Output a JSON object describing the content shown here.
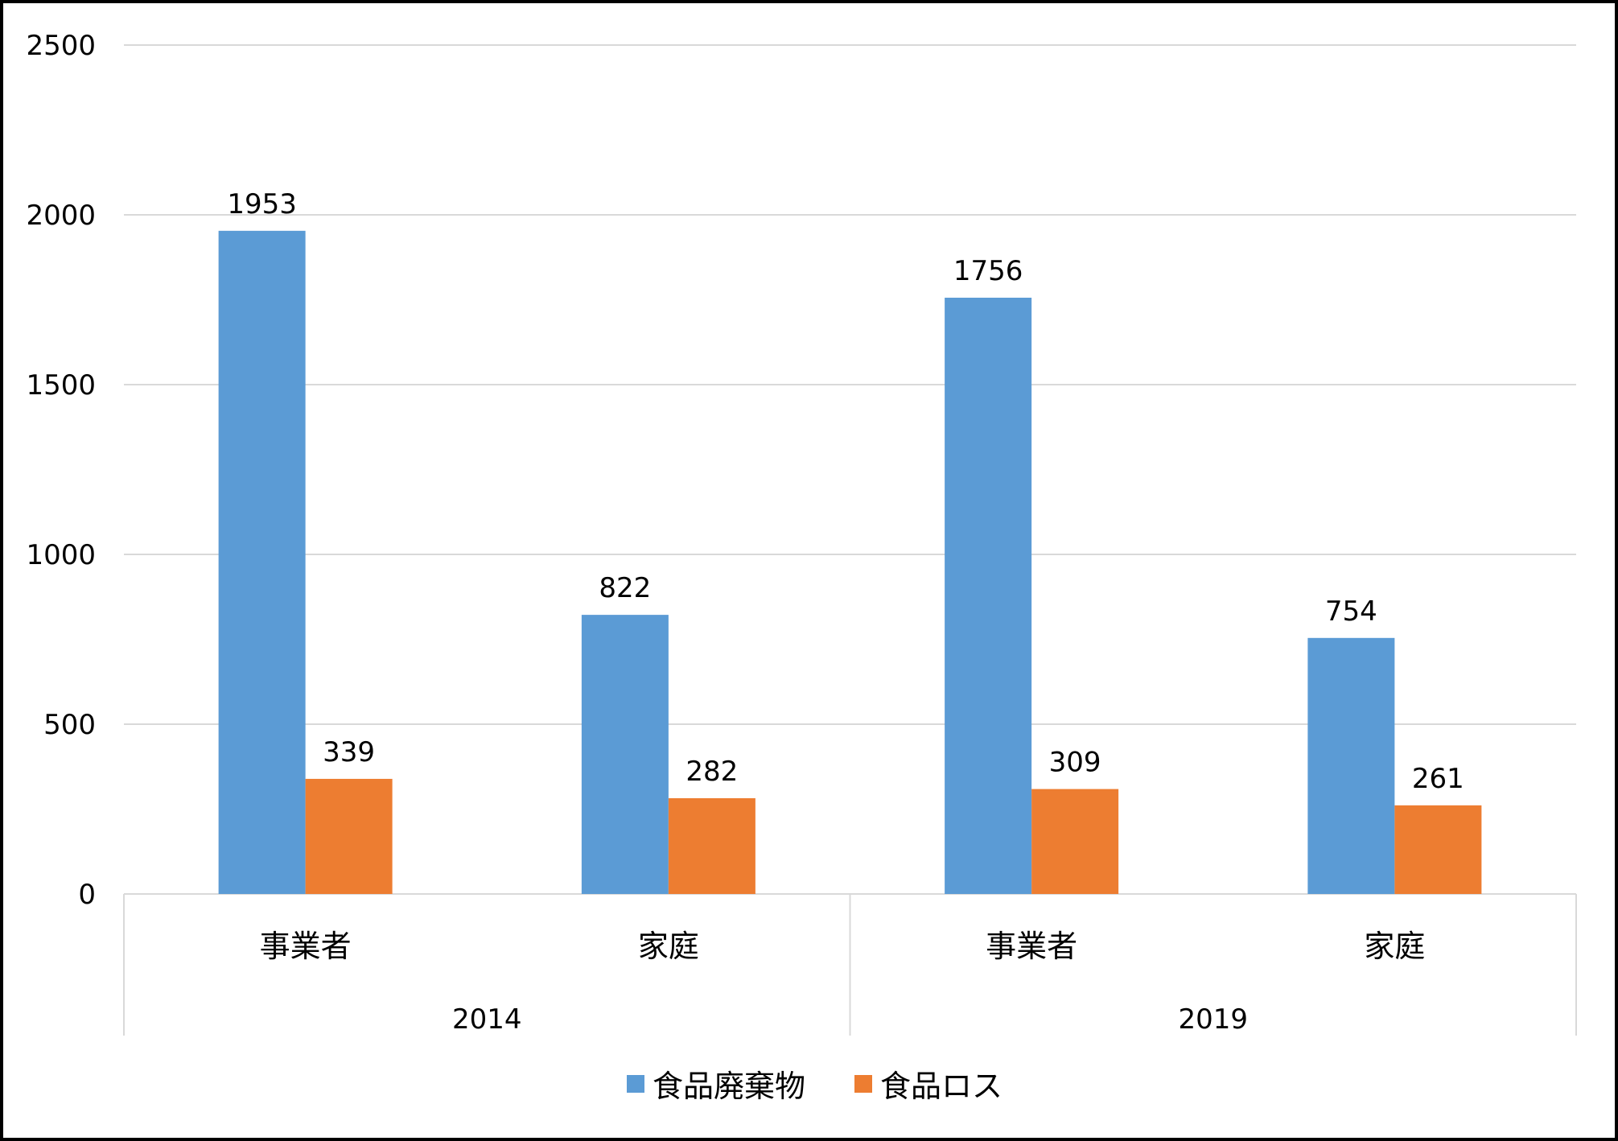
{
  "chart_data": {
    "type": "bar",
    "title": "",
    "xlabel": "",
    "ylabel": "",
    "ylim": [
      0,
      2500
    ],
    "yticks": [
      0,
      500,
      1000,
      1500,
      2000,
      2500
    ],
    "grid": true,
    "legend_position": "bottom",
    "groups": [
      {
        "label": "2014",
        "categories": [
          "事業者",
          "家庭"
        ]
      },
      {
        "label": "2019",
        "categories": [
          "事業者",
          "家庭"
        ]
      }
    ],
    "categories": [
      "事業者",
      "家庭",
      "事業者",
      "家庭"
    ],
    "series": [
      {
        "name": "食品廃棄物",
        "color": "#5B9BD5",
        "values": [
          1953,
          822,
          1756,
          754
        ]
      },
      {
        "name": "食品ロス",
        "color": "#ED7D31",
        "values": [
          339,
          282,
          309,
          261
        ]
      }
    ]
  },
  "colors": {
    "gridline": "#D9D9D9",
    "axis": "#D9D9D9",
    "frame": "#000000"
  }
}
